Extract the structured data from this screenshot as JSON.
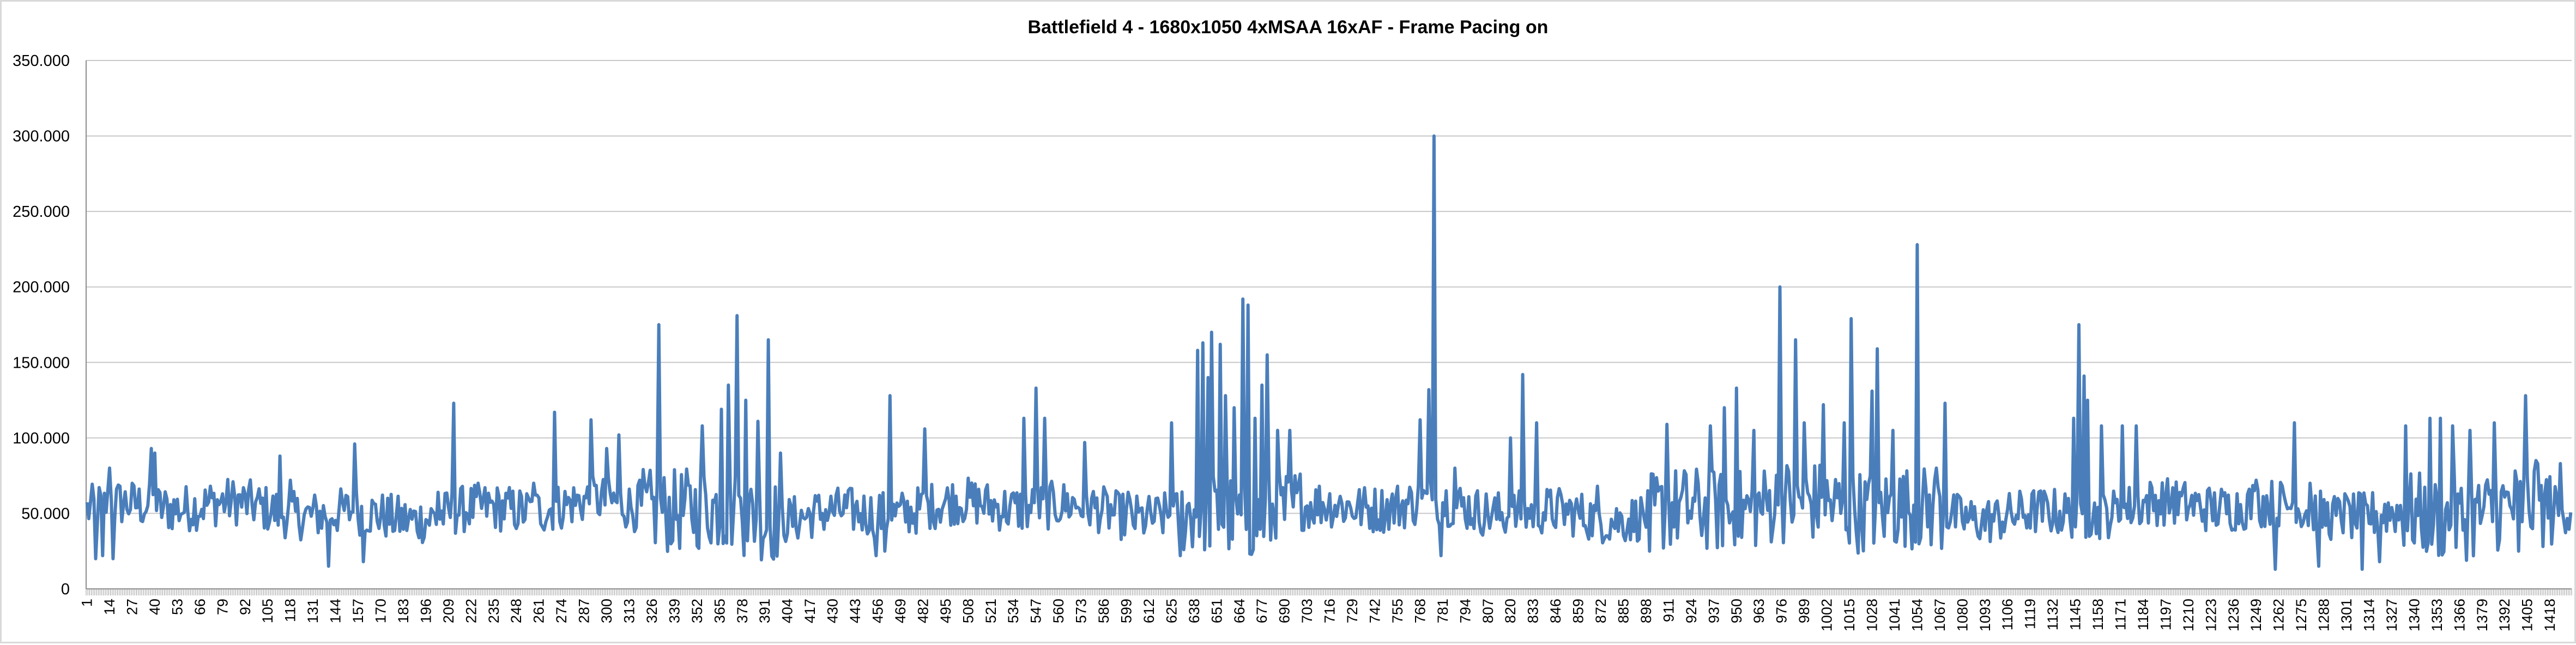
{
  "chart_data": {
    "type": "line",
    "title": "Battlefield 4 - 1680x1050 4xMSAA 16xAF - Frame Pacing on",
    "xlabel": "",
    "ylabel": "",
    "ylim": [
      0,
      350
    ],
    "y_ticks": [
      "0",
      "50.000",
      "100.000",
      "150.000",
      "200.000",
      "250.000",
      "300.000",
      "350.000"
    ],
    "x_count": 1430,
    "x_tick_start": 1,
    "x_tick_step": 13,
    "grid": true,
    "legend": "none",
    "series_color": "#4a7ebb",
    "series": [
      {
        "peaks": [
          [
            10,
            82
          ],
          [
            14,
            80
          ],
          [
            38,
            93
          ],
          [
            40,
            90
          ],
          [
            72,
            68
          ],
          [
            112,
            88
          ],
          [
            118,
            72
          ],
          [
            155,
            96
          ],
          [
            203,
            64
          ],
          [
            212,
            123
          ],
          [
            258,
            70
          ],
          [
            270,
            117
          ],
          [
            291,
            112
          ],
          [
            300,
            93
          ],
          [
            307,
            102
          ],
          [
            319,
            72
          ],
          [
            330,
            175
          ],
          [
            355,
            108
          ],
          [
            366,
            119
          ],
          [
            370,
            135
          ],
          [
            375,
            181
          ],
          [
            380,
            125
          ],
          [
            387,
            111
          ],
          [
            393,
            165
          ],
          [
            400,
            90
          ],
          [
            460,
            117
          ],
          [
            463,
            128
          ],
          [
            483,
            106
          ],
          [
            540,
            113
          ],
          [
            547,
            133
          ],
          [
            552,
            113
          ],
          [
            575,
            97
          ],
          [
            600,
            64
          ],
          [
            625,
            110
          ],
          [
            640,
            158
          ],
          [
            643,
            163
          ],
          [
            646,
            140
          ],
          [
            648,
            170
          ],
          [
            653,
            162
          ],
          [
            656,
            128
          ],
          [
            661,
            120
          ],
          [
            666,
            192
          ],
          [
            669,
            188
          ],
          [
            673,
            113
          ],
          [
            677,
            135
          ],
          [
            680,
            155
          ],
          [
            686,
            105
          ],
          [
            693,
            105
          ],
          [
            710,
            68
          ],
          [
            755,
            68
          ],
          [
            768,
            112
          ],
          [
            773,
            132
          ],
          [
            776,
            300
          ],
          [
            780,
            105
          ],
          [
            788,
            80
          ],
          [
            820,
            100
          ],
          [
            827,
            142
          ],
          [
            835,
            110
          ],
          [
            870,
            68
          ],
          [
            910,
            109
          ],
          [
            935,
            108
          ],
          [
            943,
            120
          ],
          [
            950,
            133
          ],
          [
            960,
            105
          ],
          [
            975,
            200
          ],
          [
            984,
            165
          ],
          [
            989,
            110
          ],
          [
            1000,
            122
          ],
          [
            1012,
            110
          ],
          [
            1016,
            179
          ],
          [
            1028,
            131
          ],
          [
            1031,
            159
          ],
          [
            1040,
            105
          ],
          [
            1054,
            228
          ],
          [
            1065,
            80
          ],
          [
            1070,
            123
          ],
          [
            1144,
            113
          ],
          [
            1147,
            175
          ],
          [
            1150,
            141
          ],
          [
            1152,
            125
          ],
          [
            1160,
            108
          ],
          [
            1172,
            108
          ],
          [
            1180,
            108
          ],
          [
            1201,
            67
          ],
          [
            1249,
            72
          ],
          [
            1271,
            110
          ],
          [
            1280,
            70
          ],
          [
            1300,
            63
          ],
          [
            1335,
            108
          ],
          [
            1349,
            113
          ],
          [
            1355,
            113
          ],
          [
            1362,
            108
          ],
          [
            1372,
            105
          ],
          [
            1386,
            110
          ],
          [
            1400,
            88
          ],
          [
            1404,
            128
          ],
          [
            1410,
            85
          ],
          [
            1424,
            83
          ]
        ],
        "troughs": [
          [
            6,
            20
          ],
          [
            10,
            22
          ],
          [
            16,
            20
          ],
          [
            140,
            15
          ],
          [
            160,
            18
          ],
          [
            455,
            22
          ],
          [
            460,
            25
          ],
          [
            630,
            22
          ],
          [
            780,
            22
          ],
          [
            900,
            25
          ],
          [
            1260,
            13
          ],
          [
            1285,
            15
          ],
          [
            1310,
            13
          ],
          [
            1320,
            18
          ],
          [
            1400,
            25
          ]
        ]
      }
    ]
  }
}
